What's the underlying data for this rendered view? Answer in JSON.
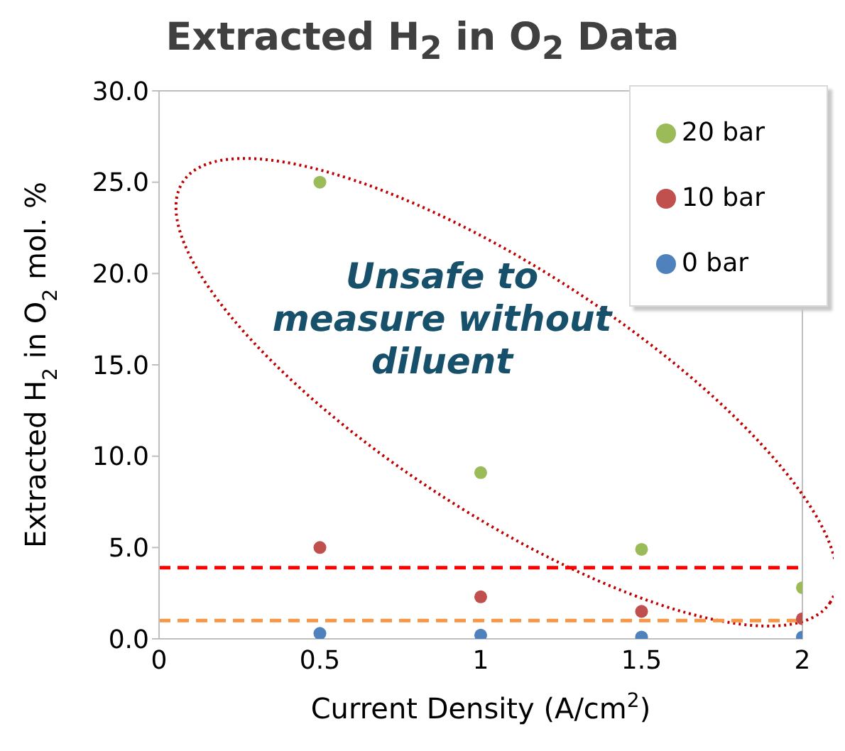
{
  "chart_data": {
    "type": "scatter",
    "title": "Extracted H$_{2}$ in O$_{2}$ Data",
    "xlabel": "Current Density (A/cm$^{2}$)",
    "ylabel": "Extracted H$_{2}$ in O$_{2}$ mol. %",
    "x": [
      0.5,
      1,
      1.5,
      2
    ],
    "series": [
      {
        "name": "20 bar",
        "color": "#9bbb59",
        "values": [
          25,
          9.1,
          4.9,
          2.8
        ]
      },
      {
        "name": "10 bar",
        "color": "#c0504d",
        "values": [
          5.0,
          2.3,
          1.5,
          1.1
        ]
      },
      {
        "name": "0 bar",
        "color": "#4f81bd",
        "values": [
          0.3,
          0.2,
          0.1,
          0.1
        ]
      }
    ],
    "xlim": [
      0,
      2
    ],
    "xticks": [
      0,
      0.5,
      1,
      1.5,
      2
    ],
    "ylim": [
      0,
      30
    ],
    "yticks": [
      {
        "value": 0,
        "label": "0.0"
      },
      {
        "value": 5,
        "label": "5.0"
      },
      {
        "value": 10,
        "label": "10.0"
      },
      {
        "value": 15,
        "label": "15.0"
      },
      {
        "value": 20,
        "label": "20.0"
      },
      {
        "value": 25,
        "label": "25.0"
      },
      {
        "value": 30,
        "label": "30.0"
      }
    ],
    "ref_lines": [
      {
        "axis": "y",
        "value": 3.9,
        "color": "#ff0000",
        "line_style": "dashed"
      },
      {
        "axis": "y",
        "value": 1.0,
        "color": "#f79646",
        "line_style": "dashed"
      }
    ],
    "annotations": [
      "Unsafe to measure without diluent"
    ],
    "legend": "top right",
    "grid": false,
    "marker": "circle"
  }
}
